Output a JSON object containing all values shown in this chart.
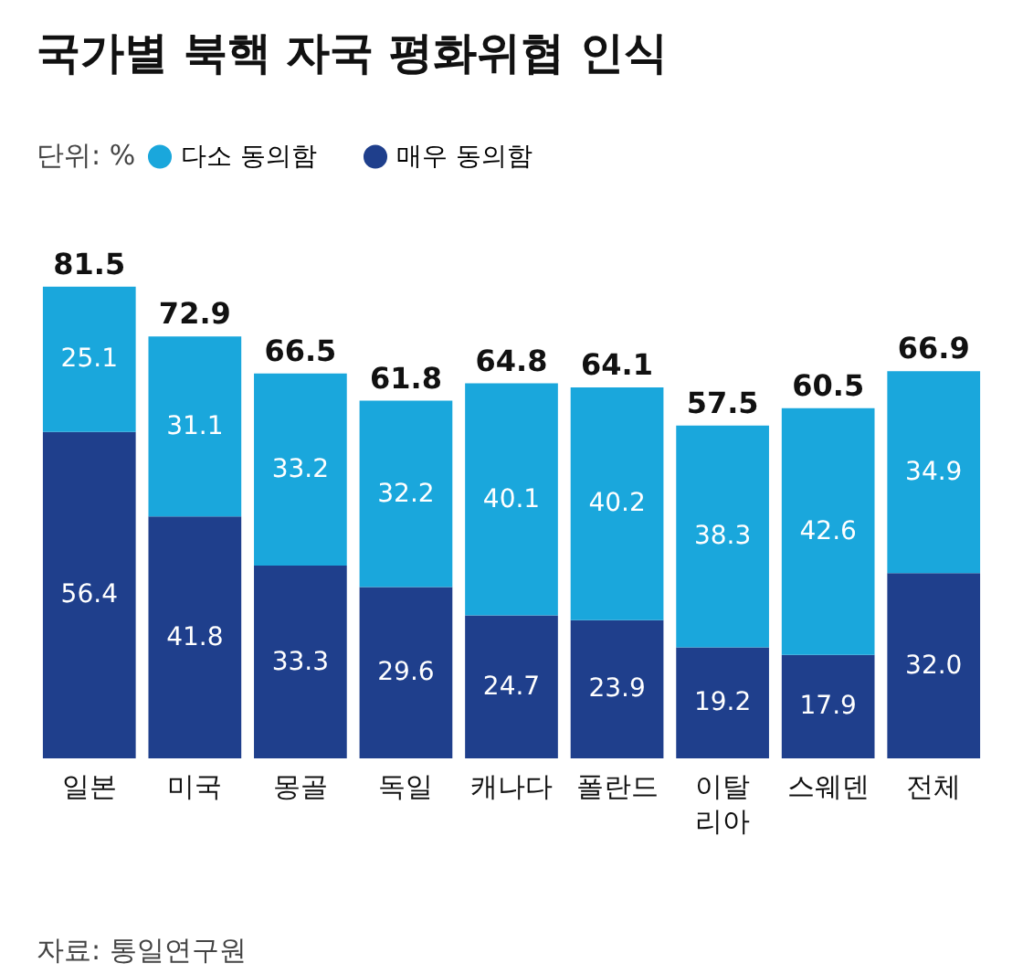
{
  "chart_data": {
    "type": "bar",
    "title": "국가별 북핵 자국 평화위협 인식",
    "stacked": true,
    "legend": "top left",
    "tick_labels": "x",
    "categories": [
      "일본",
      "미국",
      "몽골",
      "독일",
      "캐나다",
      "폴란드",
      "이탈리아",
      "스웨덴",
      "전체"
    ],
    "series": [
      {
        "name": "매우 동의함",
        "color": "#1f3f8c",
        "values": [
          56.4,
          41.8,
          33.3,
          29.6,
          24.7,
          23.9,
          19.2,
          17.9,
          32.0
        ],
        "value_labels": [
          "56.4",
          "41.8",
          "33.3",
          "29.6",
          "24.7",
          "23.9",
          "19.2",
          "17.9",
          "32.0"
        ]
      },
      {
        "name": "다소 동의함",
        "color": "#1aa7dc",
        "values": [
          25.1,
          31.1,
          33.2,
          32.2,
          40.1,
          40.2,
          38.3,
          42.6,
          34.9
        ],
        "value_labels": [
          "25.1",
          "31.1",
          "33.2",
          "32.2",
          "40.1",
          "40.2",
          "38.3",
          "42.6",
          "34.9"
        ]
      }
    ],
    "totals": [
      "81.5",
      "72.9",
      "66.5",
      "61.8",
      "64.8",
      "64.1",
      "57.5",
      "60.5",
      "66.9"
    ],
    "annotations": [
      "단위: %",
      "자료: 통일연구원"
    ]
  }
}
